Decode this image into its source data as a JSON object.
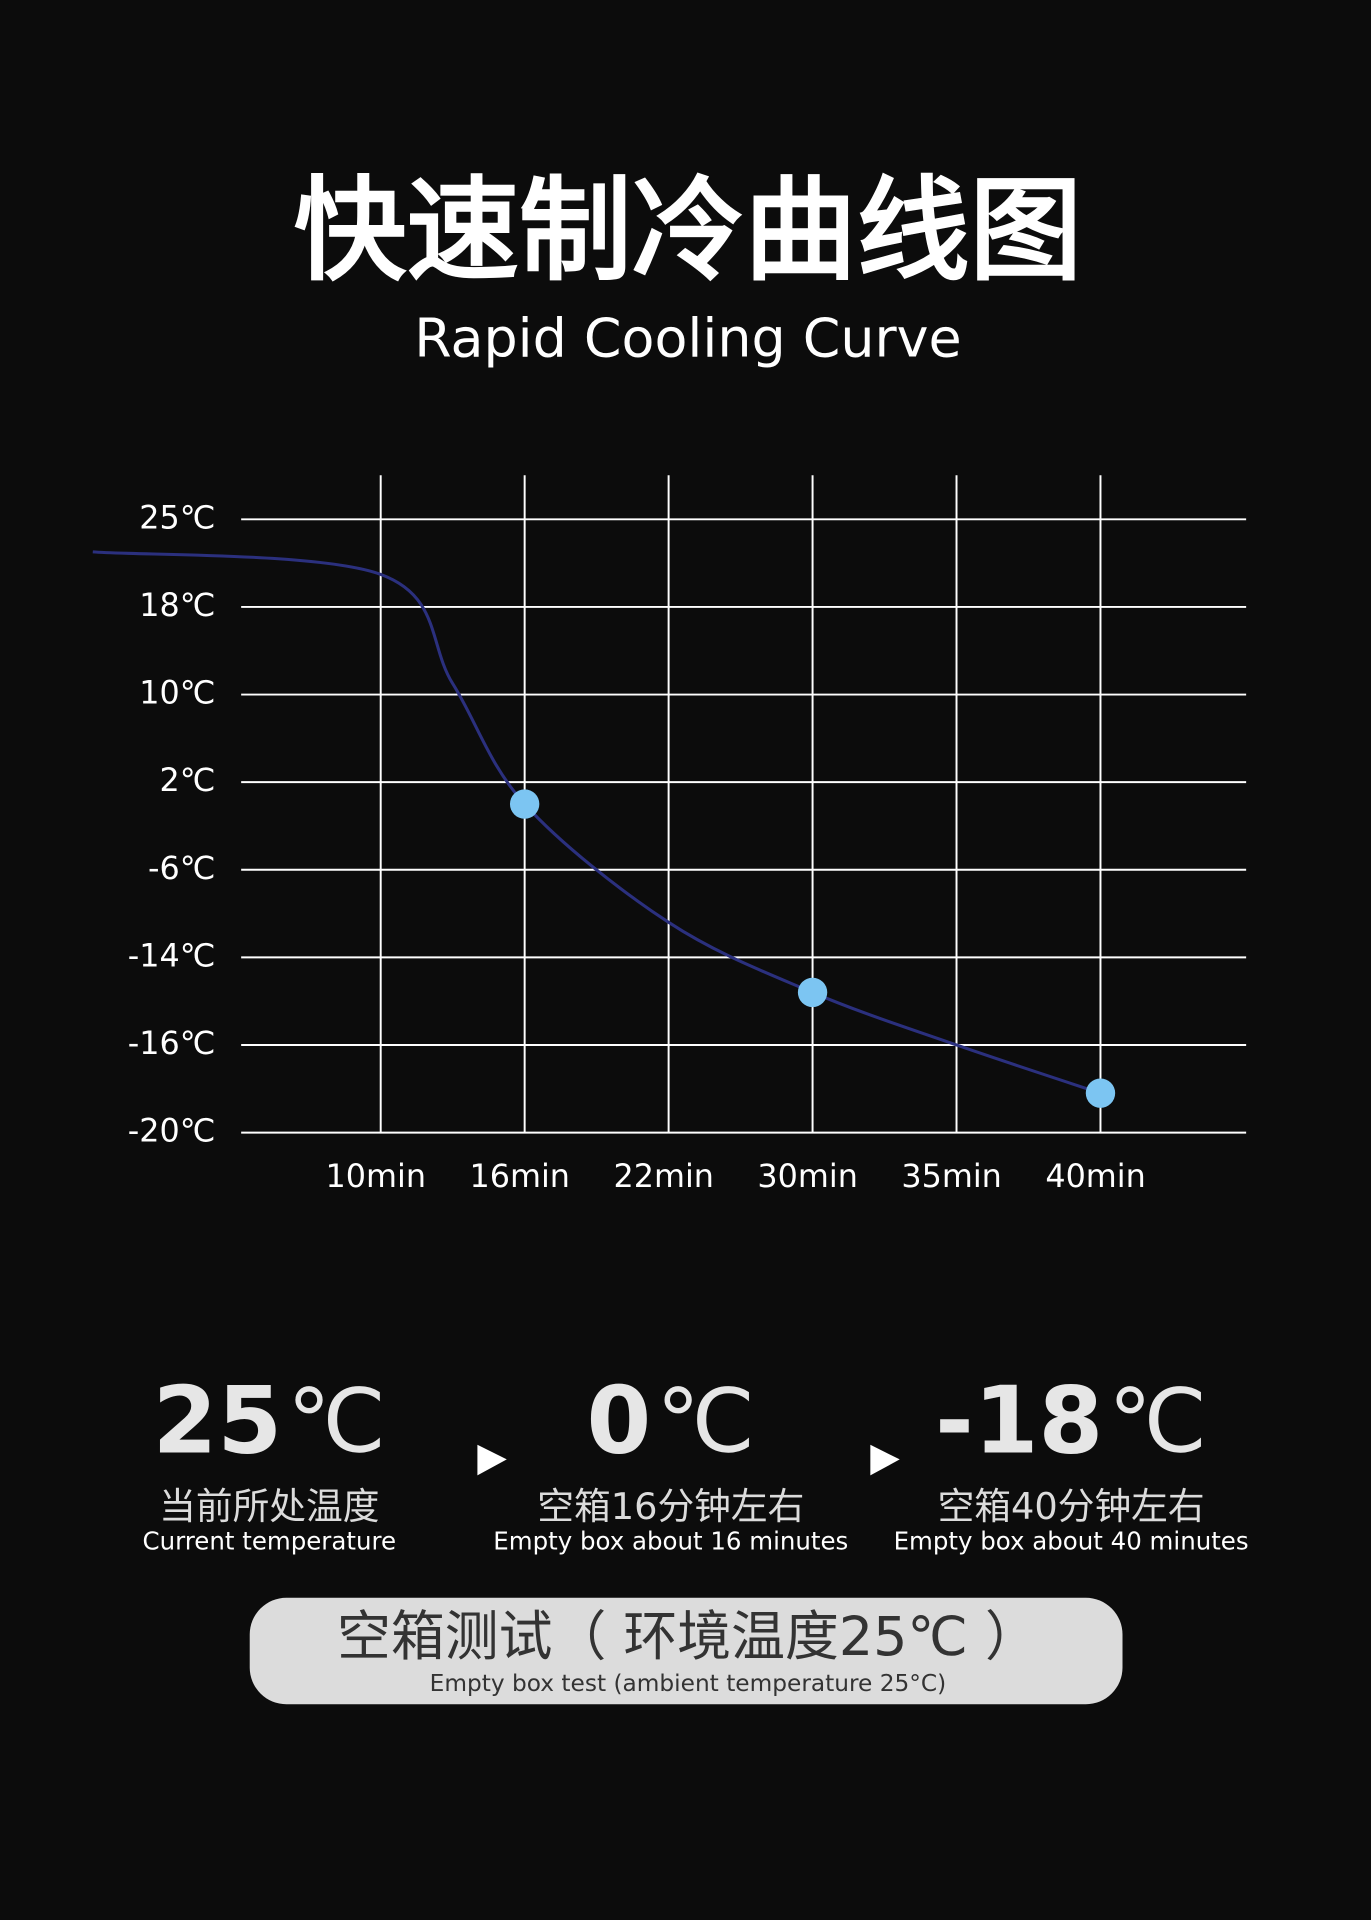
{
  "chart_data": {
    "type": "line",
    "title": "快速制冷曲线图",
    "subtitle": "Rapid Cooling Curve",
    "x": [
      5,
      10,
      13,
      16,
      22,
      30,
      35,
      40
    ],
    "series": [
      {
        "color": "#2b307e",
        "values": [
          22.4,
          20.6,
          11,
          0,
          -10.8,
          -14.8,
          -16,
          -18.2
        ]
      }
    ],
    "markers": {
      "color": "#7cc5f2",
      "x": [
        16,
        30,
        40
      ],
      "values": [
        0,
        -14.8,
        -18.2
      ]
    },
    "xticks": [
      {
        "value": 10,
        "label": "10min"
      },
      {
        "value": 16,
        "label": "16min"
      },
      {
        "value": 22,
        "label": "22min"
      },
      {
        "value": 30,
        "label": "30min"
      },
      {
        "value": 35,
        "label": "35min"
      },
      {
        "value": 40,
        "label": "40min"
      }
    ],
    "yticks": [
      {
        "value": 25,
        "label": "25℃"
      },
      {
        "value": 18,
        "label": "18℃"
      },
      {
        "value": 10,
        "label": "10℃"
      },
      {
        "value": 2,
        "label": "2℃"
      },
      {
        "value": -6,
        "label": "-6℃"
      },
      {
        "value": -14,
        "label": "-14℃"
      },
      {
        "value": -16,
        "label": "-16℃"
      },
      {
        "value": -20,
        "label": "-20℃"
      }
    ],
    "grid": true
  },
  "stats": [
    {
      "value": "25",
      "unit": "℃",
      "label": "当前所处温度",
      "label_en": "Current temperature"
    },
    {
      "value": "0",
      "unit": "℃",
      "label": "空箱16分钟左右",
      "label_en": "Empty box about 16 minutes"
    },
    {
      "value": "-18",
      "unit": "℃",
      "label": "空箱40分钟左右",
      "label_en": "Empty box about 40 minutes"
    }
  ],
  "note": {
    "title": "空箱测试（ 环境温度25℃ ）",
    "subtitle": "Empty box test (ambient temperature 25°C)"
  }
}
